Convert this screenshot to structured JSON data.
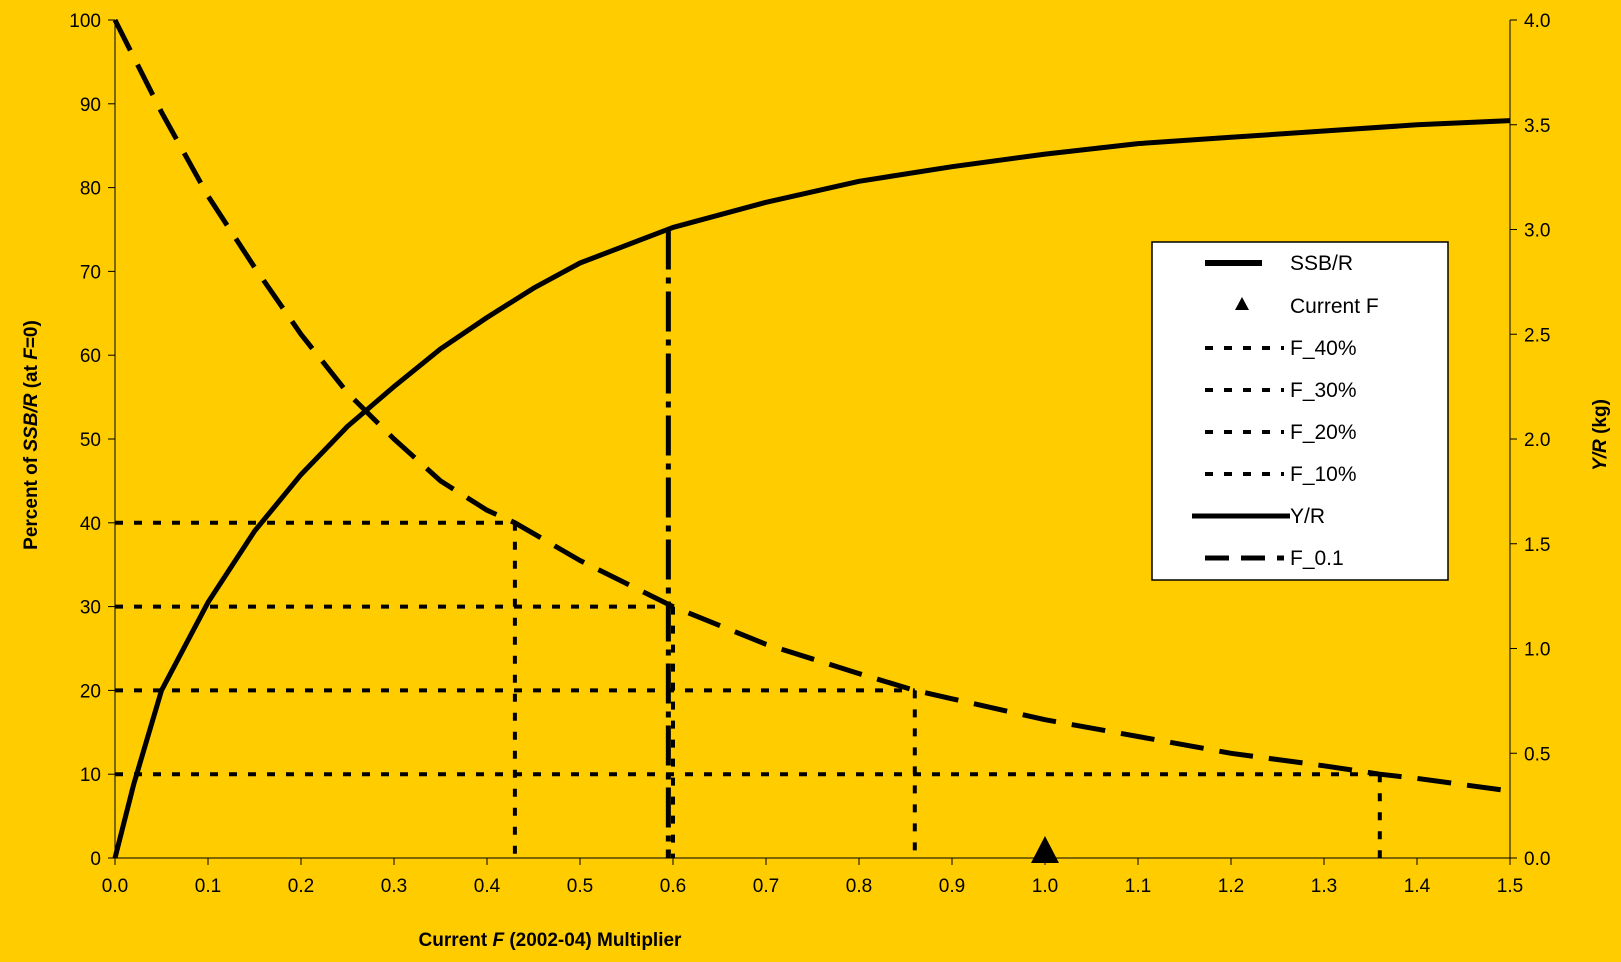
{
  "chart_data": {
    "type": "line",
    "title": "",
    "xlabel": "Current F (2002-04) Multiplier",
    "xlabel_parts": [
      "Current ",
      "F",
      " (2002-04) Multiplier"
    ],
    "ylabel": "Percent of SSB/R (at F=0)",
    "ylabel_parts": [
      "Percent of ",
      "SSB/R",
      " (at ",
      "F",
      "=0)"
    ],
    "y2label": "Y/R (kg)",
    "y2label_parts": [
      "Y/R",
      " (kg)"
    ],
    "xlim": [
      0,
      1.5
    ],
    "ylim": [
      0,
      100
    ],
    "y2lim": [
      0,
      4
    ],
    "x_ticks": [
      "0.0",
      "0.1",
      "0.2",
      "0.3",
      "0.4",
      "0.5",
      "0.6",
      "0.7",
      "0.8",
      "0.9",
      "1.0",
      "1.1",
      "1.2",
      "1.3",
      "1.4",
      "1.5"
    ],
    "y_ticks": [
      "0",
      "10",
      "20",
      "30",
      "40",
      "50",
      "60",
      "70",
      "80",
      "90",
      "100"
    ],
    "y2_ticks": [
      "0.0",
      "0.5",
      "1.0",
      "1.5",
      "2.0",
      "2.5",
      "3.0",
      "3.5",
      "4.0"
    ],
    "legend_position": "right",
    "series": [
      {
        "name": "SSB/R",
        "axis": "left",
        "style": "long-dash",
        "x": [
          0,
          0.05,
          0.1,
          0.15,
          0.2,
          0.25,
          0.3,
          0.35,
          0.4,
          0.43,
          0.5,
          0.6,
          0.7,
          0.8,
          0.86,
          0.9,
          1.0,
          1.1,
          1.2,
          1.3,
          1.36,
          1.4,
          1.5
        ],
        "y": [
          100,
          89,
          79,
          70.5,
          62.5,
          55.5,
          50,
          45,
          41.5,
          40,
          35.5,
          30,
          25.5,
          22,
          20,
          19,
          16.5,
          14.5,
          12.5,
          11,
          10,
          9.5,
          8
        ]
      },
      {
        "name": "Y/R",
        "axis": "right",
        "style": "solid",
        "x": [
          0,
          0.02,
          0.05,
          0.1,
          0.15,
          0.2,
          0.25,
          0.3,
          0.35,
          0.4,
          0.45,
          0.5,
          0.6,
          0.7,
          0.8,
          0.9,
          1.0,
          1.1,
          1.2,
          1.3,
          1.4,
          1.5
        ],
        "y": [
          0,
          0.35,
          0.8,
          1.22,
          1.56,
          1.83,
          2.06,
          2.25,
          2.43,
          2.58,
          2.72,
          2.84,
          3.01,
          3.13,
          3.23,
          3.3,
          3.36,
          3.41,
          3.44,
          3.47,
          3.5,
          3.52
        ]
      }
    ],
    "reference_lines": [
      {
        "name": "F_40%",
        "f": 0.43,
        "pct": 40
      },
      {
        "name": "F_30%",
        "f": 0.6,
        "pct": 30
      },
      {
        "name": "F_20%",
        "f": 0.86,
        "pct": 20
      },
      {
        "name": "F_10%",
        "f": 1.36,
        "pct": 10
      }
    ],
    "f01": {
      "name": "F_0.1",
      "f": 0.595,
      "yr": 3.0
    },
    "current_f": {
      "name": "Current F",
      "x": 1.0,
      "y": 0
    },
    "legend_labels": {
      "ssbr": "SSB/R",
      "current": "Current F",
      "f40": "F_40%",
      "f30": "F_30%",
      "f20": "F_20%",
      "f10": "F_10%",
      "yr": "Y/R",
      "f01": "F_0.1"
    }
  }
}
